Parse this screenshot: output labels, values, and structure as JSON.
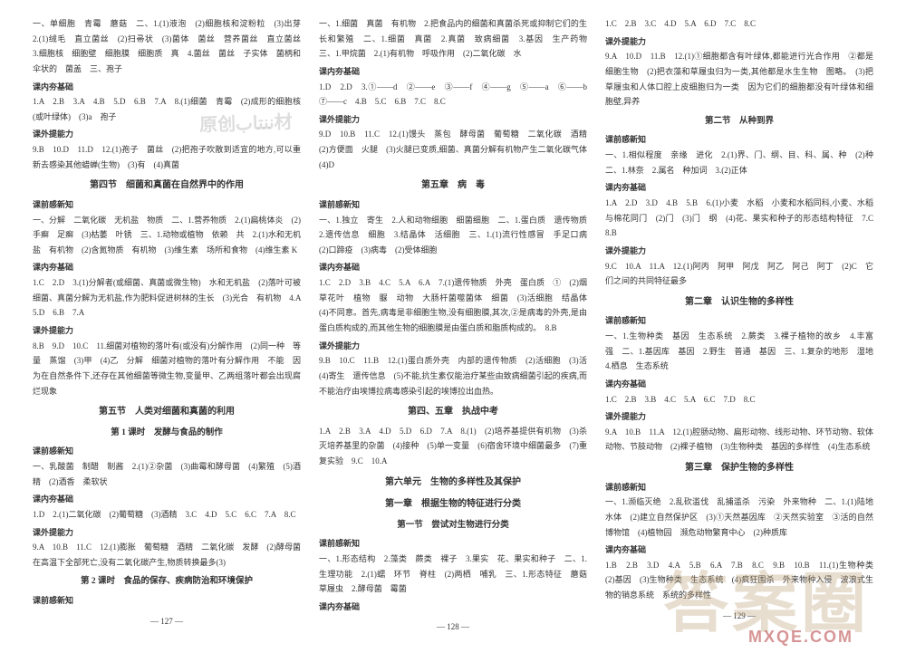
{
  "watermarks": {
    "top": "原创ننتاب材",
    "big": "答案圈",
    "url": "MXQE.COM"
  },
  "columns": [
    {
      "page": "— 127 —",
      "blocks": [
        {
          "t": "text",
          "v": "一、单细胞　青霉　蘑菇　二、1.(1)液泡　(2)细胞核和淀粉粒　(3)出芽　2.(1)绒毛　直立菌丝　(2)扫帚状　(3)菌体　菌丝　营养菌丝　直立菌丝　3.细胞核　细胞壁　细胞膜　细胞质　真　4.菌丝　菌丝　子实体　菌柄和伞状的　菌盖　三、孢子"
        },
        {
          "t": "label",
          "v": "课内夯基础"
        },
        {
          "t": "text",
          "v": "1.A　2.B　3.A　4.B　5.D　6.B　7.A　8.(1)细菌　青霉　(2)成形的细胞核(或叶绿体)　(3)a　孢子"
        },
        {
          "t": "label",
          "v": "课外提能力"
        },
        {
          "t": "text",
          "v": "9.B　10.D　11.D　12.(1)孢子　菌丝　(2)把孢子吹散到适宜的地方,可以重新去感染其他蜡蝉(生物)　(3)有　(4)真菌"
        },
        {
          "t": "title",
          "v": "第四节　细菌和真菌在自然界中的作用"
        },
        {
          "t": "label",
          "v": "课前感新知"
        },
        {
          "t": "text",
          "v": "一、分解　二氧化碳　无机盐　物质　二、1.营养物质　2.(1)扁桃体炎　(2)手癣　足癣　(3)枯萎　叶锈　三、1.动物或植物　依赖　共　2.(1)水和无机盐　有机物　(2)含氮物质　有机物　(3)维生素　场所和食物　(4)维生素 K"
        },
        {
          "t": "label",
          "v": "课内夯基础"
        },
        {
          "t": "text",
          "v": "1.C　2.D　3.(1)分解者(或细菌、真菌或微生物)　水和无机盐　(2)落叶可被细菌、真菌分解为无机盐,作为肥料促进树林的生长　(3)光合　有机物　4.A　5.D　6.B　7.A"
        },
        {
          "t": "label",
          "v": "课外提能力"
        },
        {
          "t": "text",
          "v": "8.B　9.D　10.C　11.细菌对植物的落叶有(或没有)分解作用　(2)同一种　等量　蒸馏　(3)甲　(4)乙　分解　细菌对植物的落叶有分解作用　不能　因为在自然条件下,还存在其他细菌等微生物,变量甲、乙两组落叶都会出现腐烂现象"
        },
        {
          "t": "title",
          "v": "第五节　人类对细菌和真菌的利用"
        },
        {
          "t": "sub",
          "v": "第 1 课时　发酵与食品的制作"
        },
        {
          "t": "label",
          "v": "课前感新知"
        },
        {
          "t": "text",
          "v": "一、乳酸菌　制醋　制酱　2.(1)②杂菌　(3)曲霉和酵母菌　(4)繁殖　(5)酒精　(2)酒香　柔软状"
        },
        {
          "t": "label",
          "v": "课内夯基础"
        },
        {
          "t": "text",
          "v": "1.D　2.(1)二氧化碳　(2)葡萄糖　(3)酒精　3.C　4.D　5.C　6.C　7.A　8.C"
        },
        {
          "t": "label",
          "v": "课外提能力"
        },
        {
          "t": "text",
          "v": "9.A　10.B　11.C　12.(1)膨胀　葡萄糖　酒精　二氧化碳　发酵　(2)酵母菌在高温下全部死亡,没有二氧化碳产生,物质转换最多(3)"
        },
        {
          "t": "sub",
          "v": "第 2 课时　食品的保存、疾病防治和环境保护"
        },
        {
          "t": "label",
          "v": "课前感新知"
        }
      ]
    },
    {
      "page": "— 128 —",
      "blocks": [
        {
          "t": "text",
          "v": "一、1.细菌　真菌　有机物　2.把食品内的细菌和真菌杀死或抑制它们的生长和繁殖　二、1.细菌　真菌　2.真菌　致病细菌　3.基因　生产药物　三、1.甲烷菌　2.(1)有机物　呼吸作用　(2)二氧化碳　水"
        },
        {
          "t": "label",
          "v": "课内夯基础"
        },
        {
          "t": "text",
          "v": "1.D　2.D　3.①——d　②——e　③——f　④——g　⑤——a　⑥——b　⑦——c　4.B　5.C　6.B　7.C　8.C"
        },
        {
          "t": "label",
          "v": "课外提能力"
        },
        {
          "t": "text",
          "v": "9.D　10.B　11.C　12.(1)馒头　蒸包　酵母菌　葡萄糖　二氧化碳　酒精　(2)方便面　火腿　(3)火腿已变质,细菌、真菌分解有机物产生二氧化碳气体　(4)D"
        },
        {
          "t": "title",
          "v": "第五章　病　毒"
        },
        {
          "t": "label",
          "v": "课前感新知"
        },
        {
          "t": "text",
          "v": "一、1.独立　寄生　2.人和动物细胞　细菌细胞　二、1.蛋白质　遗传物质　2.遗传信息　细胞　3.结晶体　活细胞　三、1.(1)流行性感冒　手足口病　(2)口蹄疫　(3)病毒　(2)受体细胞"
        },
        {
          "t": "label",
          "v": "课内夯基础"
        },
        {
          "t": "text",
          "v": "1.C　2.D　3.B　4.C　5.A　6.A　7.(1)遗传物质　外壳　蛋白质　①　(2)烟草花叶　植物　脲　动物　大肠杆菌噬菌体　细菌　(3)活细胞　结晶体　(4)不同意。首先,病毒是非细胞生物,没有细胞膜,其次,②是病毒的外壳,是由蛋白质构成的,而其他生物的细胞膜是由蛋白质和脂质构成的。　8.B"
        },
        {
          "t": "label",
          "v": "课外提能力"
        },
        {
          "t": "text",
          "v": "9.B　10.C　11.B　12.(1)蛋白质外壳　内部的遗传物质　(2)活细胞　(3)活　(4)寄生　遗传信息　(5)不能,抗生素仅能治疗某些由致病细菌引起的疾病,而不能治疗由埃博拉病毒感染引起的埃博拉出血热。"
        },
        {
          "t": "title",
          "v": "第四、五章　执战中考"
        },
        {
          "t": "text",
          "v": "1.A　2.B　3.A　4.D　5.D　6.D　7.A　8.(1)　(2)培养基提供有机物　(3)杀灭培养基里的杂菌　(4)接种　(5)单一变量　(6)宿舍环境中细菌最多　(7)重复实验　9.C　10.A"
        },
        {
          "t": "title",
          "v": "第六单元　生物的多样性及其保护"
        },
        {
          "t": "title",
          "v": "第一章　根据生物的特征进行分类"
        },
        {
          "t": "sub",
          "v": "第一节　尝试对生物进行分类"
        },
        {
          "t": "label",
          "v": "课前感新知"
        },
        {
          "t": "text",
          "v": "一、1.形态结构　2.藻类　蕨类　裸子　3.果实　花、果实和种子　二、1.生理功能　2.(1)蠕　环节　脊柱　(2)两栖　哺乳　三、1.形态特征　蘑菇　草履虫　2.酵母菌　霉菌"
        },
        {
          "t": "label",
          "v": "课内夯基础"
        }
      ]
    },
    {
      "page": "— 129 —",
      "blocks": [
        {
          "t": "text",
          "v": "1.C　2.B　3.C　4.D　5.A　6.D　7.C　8.C"
        },
        {
          "t": "label",
          "v": "课外提能力"
        },
        {
          "t": "text",
          "v": "9.A　10.D　11.B　12.(1)①细胞都含有叶绿体,都能进行光合作用　②都是细胞生物　(2)把衣藻和草履虫归为一类,其他都是水生生物　图略。　(3)把草履虫和人体口腔上皮细胞归为一类　因为它们的细胞都没有叶绿体和细胞壁,异养"
        },
        {
          "t": "sub",
          "v": "第二节　从种到界"
        },
        {
          "t": "label",
          "v": "课前感新知"
        },
        {
          "t": "text",
          "v": "一、1.相似程度　亲缘　进化　2.(1)界、门、纲、目、科、属、种　(2)种　二、1.林奈　2.属名　种加词　3.(2)正体"
        },
        {
          "t": "label",
          "v": "课内夯基础"
        },
        {
          "t": "text",
          "v": "1.A　2.D　3.D　4.B　5.B　6.(1)小麦　水稻　小麦和水稻同科,小麦、水稻与棉花同门　(2)门　(3)门　纲　(4)花、果实和种子的形态结构特征　7.C　8.B"
        },
        {
          "t": "label",
          "v": "课外提能力"
        },
        {
          "t": "text",
          "v": "9.C　10.A　11.A　12.(1)阿丙　阿甲　阿戊　阿乙　阿己　阿丁　(2)C　它们之间的共同特征最多"
        },
        {
          "t": "title",
          "v": "第二章　认识生物的多样性"
        },
        {
          "t": "label",
          "v": "课前感新知"
        },
        {
          "t": "text",
          "v": "一、1.生物种类　基因　生态系统　2.蕨类　3.裸子植物的故乡　4.丰富　强　二、1.基因库　基因　2.野生　普通　基因　三、1.复杂的地形　湿地　4.栖息　生态系统"
        },
        {
          "t": "label",
          "v": "课内夯基础"
        },
        {
          "t": "text",
          "v": "1.C　2.B　3.B　4.C　5.A　6.C　7.D　8.C"
        },
        {
          "t": "label",
          "v": "课外提能力"
        },
        {
          "t": "text",
          "v": "9.A　10.B　11.A　12.(1)腔肠动物、扁形动物、线形动物、环节动物、软体动物、节肢动物　(2)裸子植物　(3)生物种类　基因的多样性　(4)生态系统"
        },
        {
          "t": "title",
          "v": "第三章　保护生物的多样性"
        },
        {
          "t": "label",
          "v": "课前感新知"
        },
        {
          "t": "text",
          "v": "一、1.濒临灭绝　2.乱砍滥伐　乱捕滥杀　污染　外来物种　二、1.(1)陆地水体　(2)建立自然保护区　(3)①天然基因库　②天然实验室　③活的自然博物馆　(4)植物园　濒危动物繁育中心　(2)种质库"
        },
        {
          "t": "label",
          "v": "课内夯基础"
        },
        {
          "t": "text",
          "v": "1.B　2.B　3.D　4.A　5.B　6.A　7.B　8.C　9.B　10.B　11.(1)生物种类　(2)基因　(3)生物种类　生态系统　(4)疯狂围杀　外来物种入侵　波浪式生物的销息系统　系统的多样性"
        }
      ]
    }
  ]
}
